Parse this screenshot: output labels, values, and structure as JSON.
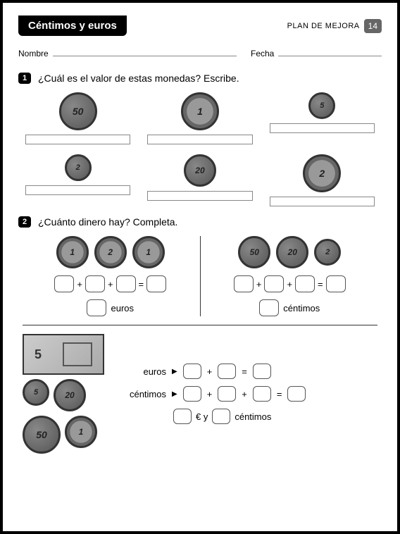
{
  "header": {
    "title": "Céntimos y euros",
    "plan": "PLAN DE MEJORA",
    "page_num": "14"
  },
  "fields": {
    "name_label": "Nombre",
    "date_label": "Fecha"
  },
  "q1": {
    "num": "1",
    "text": "¿Cuál es el valor de estas monedas? Escribe.",
    "coins": [
      {
        "label": "50",
        "size": "coin-lg",
        "bi": false
      },
      {
        "label": "1",
        "size": "coin-lg",
        "bi": true
      },
      {
        "label": "5",
        "size": "coin-sm",
        "bi": false
      },
      {
        "label": "2",
        "size": "coin-sm",
        "bi": false
      },
      {
        "label": "20",
        "size": "coin-md",
        "bi": false
      },
      {
        "label": "2",
        "size": "coin-lg",
        "bi": true
      }
    ]
  },
  "q2": {
    "num": "2",
    "text": "¿Cuánto dinero hay? Completa.",
    "left_coins": [
      {
        "label": "1",
        "bi": true
      },
      {
        "label": "2",
        "bi": true
      },
      {
        "label": "1",
        "bi": true
      }
    ],
    "right_coins": [
      {
        "label": "50",
        "bi": false
      },
      {
        "label": "20",
        "bi": false
      },
      {
        "label": "2",
        "bi": false
      }
    ],
    "unit_euros": "euros",
    "unit_cents": "céntimos",
    "plus": "+",
    "eq": "=",
    "note_value": "5",
    "bottom_coins": [
      {
        "label": "5",
        "bi": false,
        "size": "coin-sm"
      },
      {
        "label": "20",
        "bi": false,
        "size": "coin-md"
      },
      {
        "label": "50",
        "bi": false,
        "size": "coin-lg"
      },
      {
        "label": "1",
        "bi": true,
        "size": "coin-md"
      }
    ],
    "euros_label": "euros",
    "cents_label": "céntimos",
    "arrow": "▶",
    "final_eur": "€ y",
    "final_cents": "céntimos"
  }
}
